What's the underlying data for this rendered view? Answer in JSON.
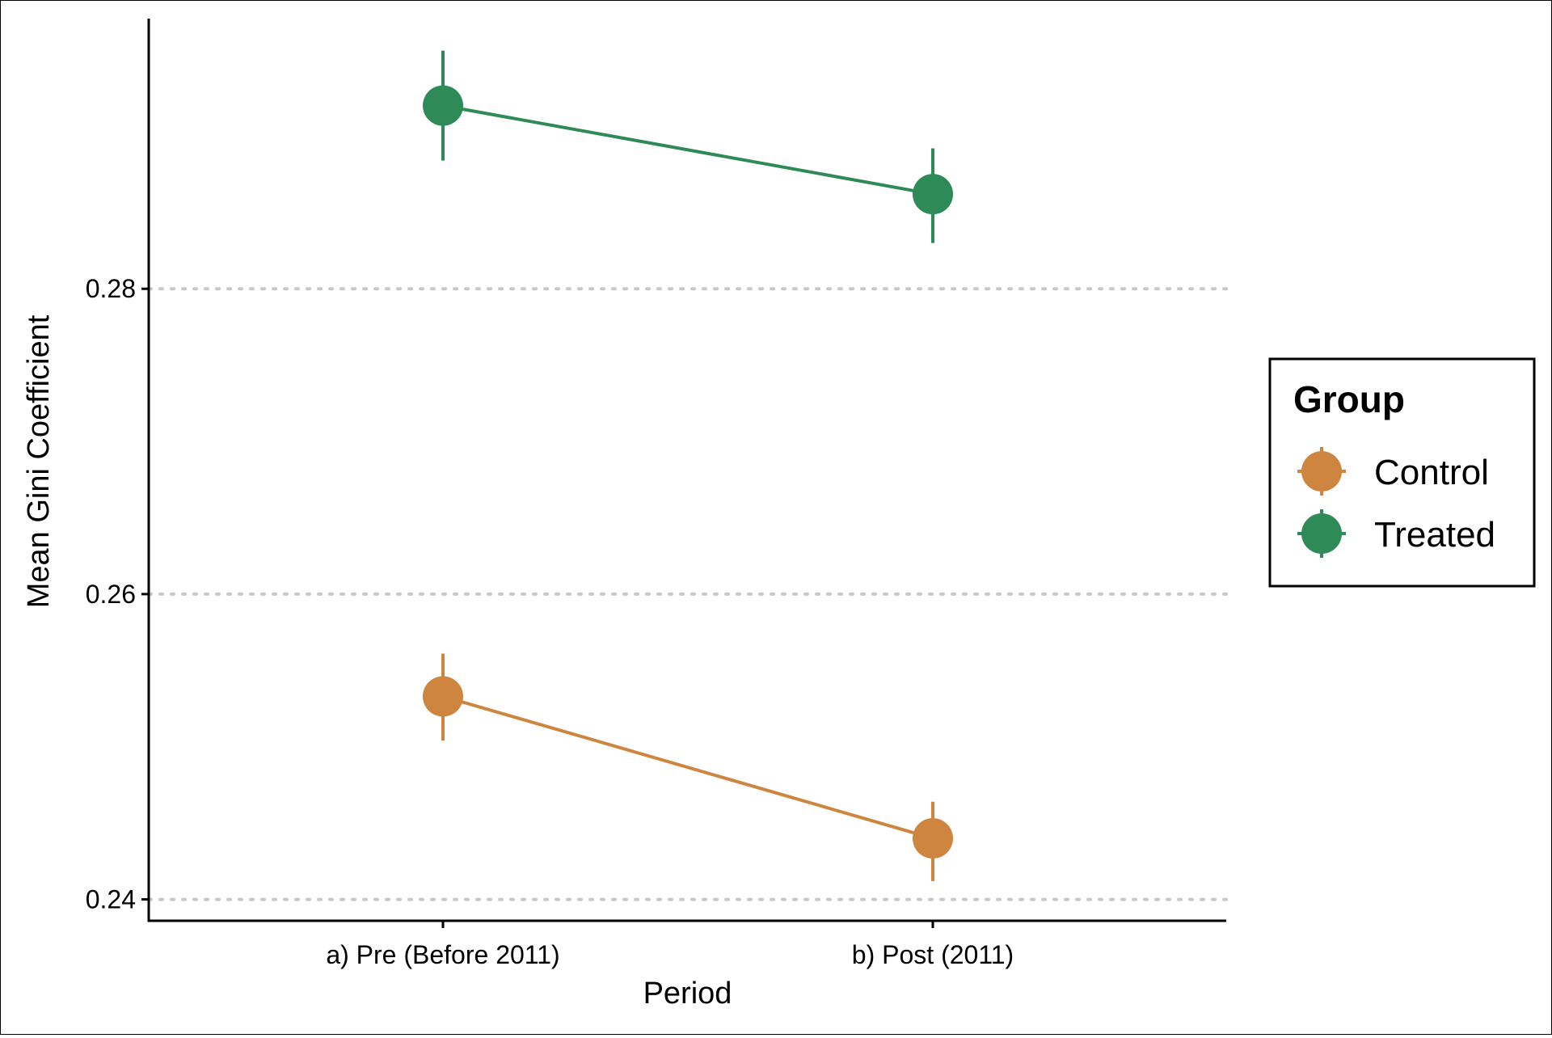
{
  "chart_data": {
    "type": "line",
    "categories": [
      "a) Pre (Before 2011)",
      "b) Post (2011)"
    ],
    "xlabel": "Period",
    "ylabel": "Mean Gini Coefficient",
    "ylim": [
      0.2386,
      0.2977
    ],
    "yticks": [
      0.24,
      0.26,
      0.28
    ],
    "ytick_labels": [
      "0.24",
      "0.26",
      "0.28"
    ],
    "grid": "horizontal dotted at major y ticks",
    "legend": {
      "title": "Group",
      "position": "right"
    },
    "series": [
      {
        "name": "Control",
        "color": "#CD853F",
        "values": [
          0.2533,
          0.244
        ],
        "error_low": [
          0.2504,
          0.2412
        ],
        "error_high": [
          0.2561,
          0.2464
        ]
      },
      {
        "name": "Treated",
        "color": "#2E8B57",
        "values": [
          0.292,
          0.2862
        ],
        "error_low": [
          0.2884,
          0.283
        ],
        "error_high": [
          0.2956,
          0.2892
        ]
      }
    ]
  }
}
